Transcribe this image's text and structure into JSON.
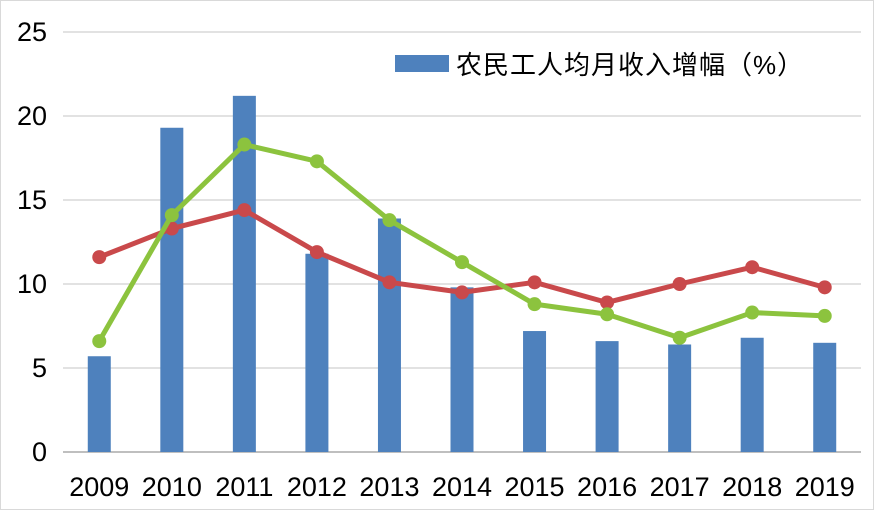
{
  "chart_data": {
    "type": "combo",
    "title": "",
    "xlabel": "",
    "ylabel": "",
    "categories": [
      "2009",
      "2010",
      "2011",
      "2012",
      "2013",
      "2014",
      "2015",
      "2016",
      "2017",
      "2018",
      "2019"
    ],
    "series": [
      {
        "id": "bar-series",
        "name": "农民工人均月收入增幅（%）",
        "type": "bar",
        "color": "#4E81BD",
        "in_legend": true,
        "values": [
          5.7,
          19.3,
          21.2,
          11.8,
          13.9,
          9.8,
          7.2,
          6.6,
          6.4,
          6.8,
          6.5
        ]
      },
      {
        "id": "red-line",
        "type": "line",
        "color": "#C9494B",
        "in_legend": false,
        "values": [
          11.6,
          13.3,
          14.4,
          11.9,
          10.1,
          9.5,
          10.1,
          8.9,
          10.0,
          11.0,
          9.8
        ]
      },
      {
        "id": "green-line",
        "type": "line",
        "color": "#8CC33E",
        "in_legend": false,
        "values": [
          6.6,
          14.1,
          18.3,
          17.3,
          13.8,
          11.3,
          8.8,
          8.2,
          6.8,
          8.3,
          8.1
        ]
      }
    ],
    "ylim": [
      0,
      25
    ],
    "yticks": [
      0,
      5,
      10,
      15,
      20,
      25
    ],
    "grid": true,
    "legend_position": "top-center",
    "colors": {
      "gridline": "#D9D9D9",
      "axis_line": "#BFBFBF",
      "tick_text": "#000000",
      "background": "#FFFFFF",
      "frame_border": "#D9D9D9"
    }
  }
}
